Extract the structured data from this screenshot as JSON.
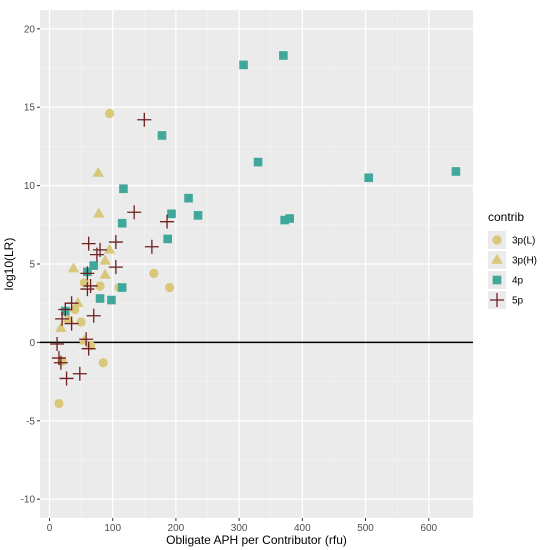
{
  "chart_data": {
    "type": "scatter",
    "title": "",
    "xlabel": "Obligate APH per Contributor (rfu)",
    "ylabel": "log10(LR)",
    "xlim": [
      -15,
      670
    ],
    "ylim": [
      -11.2,
      21.2
    ],
    "x_ticks": [
      0,
      100,
      200,
      300,
      400,
      500,
      600
    ],
    "y_ticks": [
      -10,
      -5,
      0,
      5,
      10,
      15,
      20
    ],
    "grid": true,
    "reference_line_y": 0,
    "legend": {
      "title": "contrib",
      "position": "right"
    },
    "series": [
      {
        "name": "3p(L)",
        "shape": "circle",
        "color": "#d9c77a",
        "points": [
          [
            95,
            14.6
          ],
          [
            165,
            4.4
          ],
          [
            190,
            3.5
          ],
          [
            80,
            3.6
          ],
          [
            110,
            3.5
          ],
          [
            50,
            1.3
          ],
          [
            40,
            2.1
          ],
          [
            55,
            3.8
          ],
          [
            65,
            -0.2
          ],
          [
            85,
            -1.3
          ],
          [
            20,
            -1.2
          ],
          [
            15,
            -3.9
          ]
        ]
      },
      {
        "name": "3p(H)",
        "shape": "triangle",
        "color": "#d9c77a",
        "points": [
          [
            77,
            10.8
          ],
          [
            78,
            8.2
          ],
          [
            95,
            5.9
          ],
          [
            88,
            5.2
          ],
          [
            88,
            4.3
          ],
          [
            38,
            4.7
          ],
          [
            45,
            2.5
          ],
          [
            30,
            1.5
          ],
          [
            18,
            0.9
          ],
          [
            55,
            0.1
          ]
        ]
      },
      {
        "name": "4p",
        "shape": "square",
        "color": "#3fa89b",
        "points": [
          [
            370,
            18.3
          ],
          [
            307,
            17.7
          ],
          [
            178,
            13.2
          ],
          [
            330,
            11.5
          ],
          [
            505,
            10.5
          ],
          [
            643,
            10.9
          ],
          [
            117,
            9.8
          ],
          [
            220,
            9.2
          ],
          [
            193,
            8.2
          ],
          [
            235,
            8.1
          ],
          [
            380,
            7.9
          ],
          [
            372,
            7.8
          ],
          [
            115,
            7.6
          ],
          [
            187,
            6.6
          ],
          [
            70,
            4.9
          ],
          [
            60,
            4.5
          ],
          [
            115,
            3.5
          ],
          [
            80,
            2.8
          ],
          [
            98,
            2.7
          ],
          [
            25,
            2.0
          ]
        ]
      },
      {
        "name": "5p",
        "shape": "cross",
        "color": "#6e1f1f",
        "points": [
          [
            150,
            14.2
          ],
          [
            134,
            8.3
          ],
          [
            186,
            7.7
          ],
          [
            105,
            6.4
          ],
          [
            162,
            6.1
          ],
          [
            62,
            6.3
          ],
          [
            80,
            5.9
          ],
          [
            75,
            5.6
          ],
          [
            105,
            4.8
          ],
          [
            60,
            4.4
          ],
          [
            65,
            3.6
          ],
          [
            60,
            3.4
          ],
          [
            35,
            2.5
          ],
          [
            25,
            2.1
          ],
          [
            70,
            1.7
          ],
          [
            20,
            1.5
          ],
          [
            35,
            1.2
          ],
          [
            58,
            0.2
          ],
          [
            12,
            -0.1
          ],
          [
            62,
            -0.4
          ],
          [
            15,
            -1.0
          ],
          [
            18,
            -1.3
          ],
          [
            48,
            -2.0
          ],
          [
            27,
            -2.3
          ]
        ]
      }
    ]
  }
}
